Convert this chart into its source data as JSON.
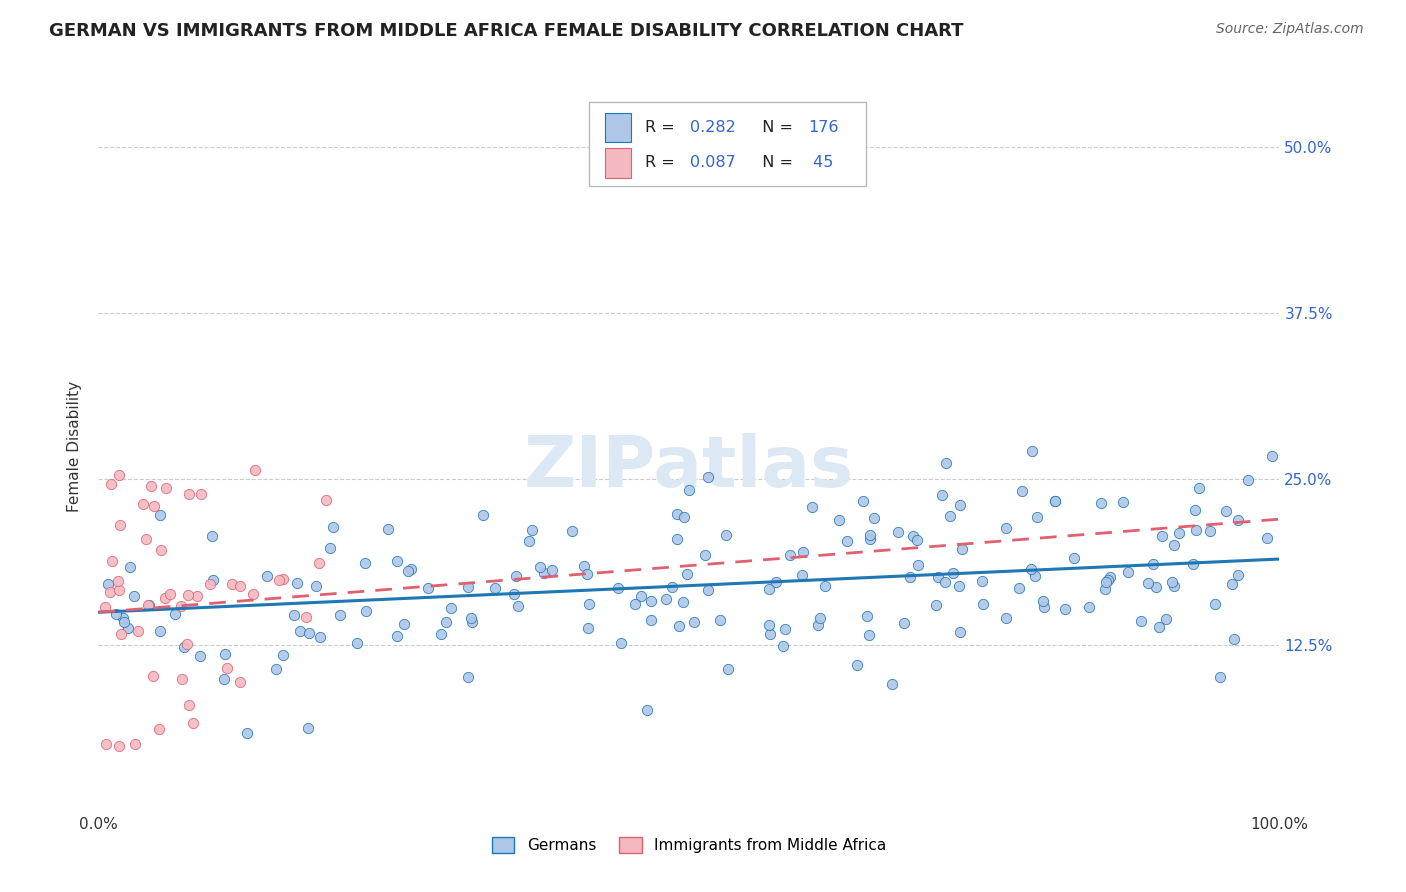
{
  "title": "GERMAN VS IMMIGRANTS FROM MIDDLE AFRICA FEMALE DISABILITY CORRELATION CHART",
  "source": "Source: ZipAtlas.com",
  "ylabel": "Female Disability",
  "ytick_labels": [
    "12.5%",
    "25.0%",
    "37.5%",
    "50.0%"
  ],
  "ytick_values": [
    0.125,
    0.25,
    0.375,
    0.5
  ],
  "xlim": [
    0.0,
    1.0
  ],
  "ylim": [
    0.0,
    0.55
  ],
  "background_color": "#ffffff",
  "scatter_color_german": "#aec6e8",
  "scatter_color_immigrant": "#f4b8c1",
  "line_color_german": "#1f77b4",
  "line_color_immigrant": "#e06070",
  "grid_color": "#cccccc",
  "title_fontsize": 13,
  "axis_label_fontsize": 11,
  "tick_fontsize": 11,
  "source_fontsize": 10,
  "watermark_text": "ZIPatlas",
  "watermark_fontsize": 52,
  "watermark_color": "#dde8f5",
  "R_german": 0.282,
  "N_german": 176,
  "R_immigrant": 0.087,
  "N_immigrant": 45,
  "legend_labels_bottom": [
    "Germans",
    "Immigrants from Middle Africa"
  ]
}
